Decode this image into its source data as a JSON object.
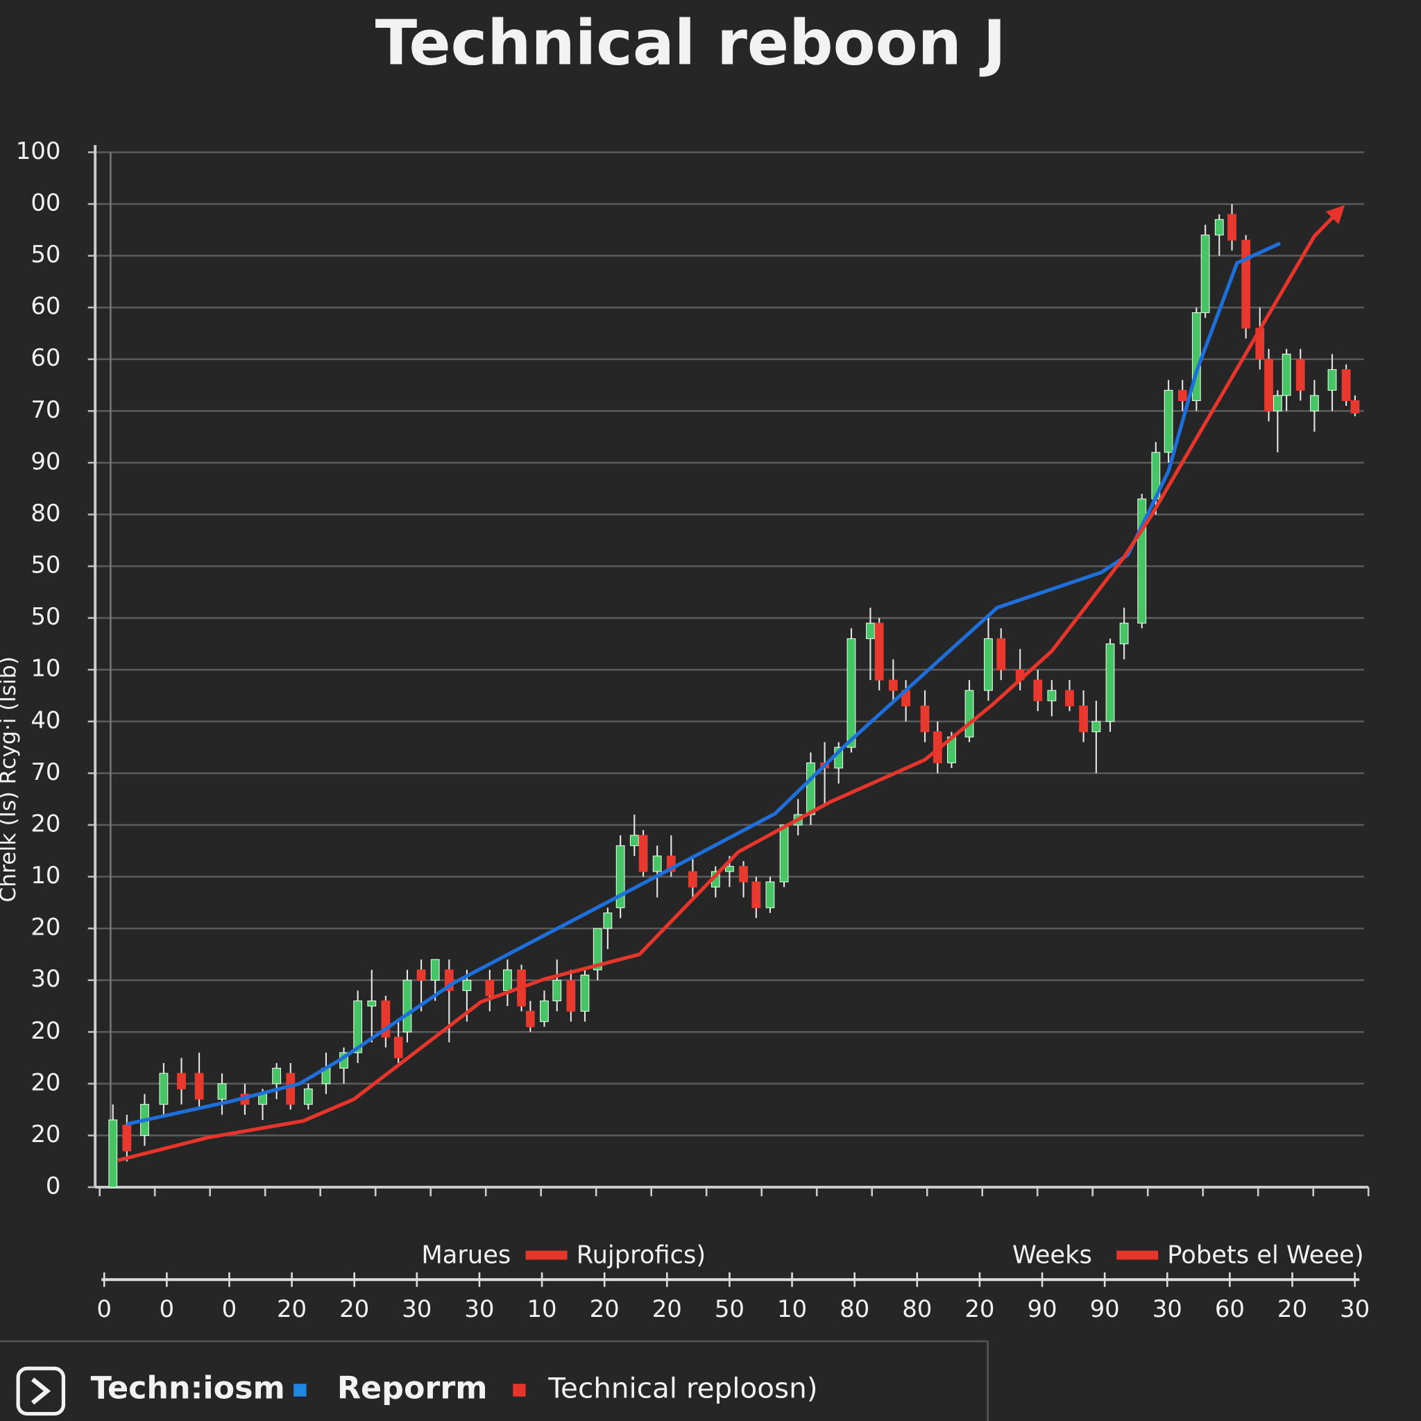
{
  "chart_data": {
    "type": "candlestick",
    "title": "Technical reboon J",
    "y_label": "Chrelk (Is) Rcyg·i (Isib)",
    "ylim": [
      0,
      100
    ],
    "yticks": [
      0,
      {
        "value": 5,
        "label": "20"
      },
      {
        "value": 10,
        "label": "20"
      },
      {
        "value": 15,
        "label": "20"
      },
      {
        "value": 20,
        "label": "30"
      },
      {
        "value": 25,
        "label": "20"
      },
      {
        "value": 30,
        "label": "10"
      },
      {
        "value": 35,
        "label": "20"
      },
      {
        "value": 40,
        "label": "70"
      },
      {
        "value": 45,
        "label": "40"
      },
      {
        "value": 50,
        "label": "10"
      },
      {
        "value": 55,
        "label": "50"
      },
      {
        "value": 60,
        "label": "50"
      },
      {
        "value": 65,
        "label": "80"
      },
      {
        "value": 70,
        "label": "90"
      },
      {
        "value": 75,
        "label": "70"
      },
      {
        "value": 80,
        "label": "60"
      },
      {
        "value": 85,
        "label": "60"
      },
      {
        "value": 90,
        "label": "50"
      },
      {
        "value": 95,
        "label": "00"
      },
      100
    ],
    "xlim": [
      0,
      100
    ],
    "grid": true,
    "up_color": "#47c466",
    "down_color": "#e8392f",
    "candles": {
      "x": [
        1.4,
        2.5,
        3.9,
        5.4,
        6.8,
        8.2,
        10,
        11.8,
        13.2,
        14.3,
        15.4,
        16.8,
        18.2,
        19.6,
        20.7,
        21.8,
        22.9,
        23.9,
        24.6,
        25.7,
        26.8,
        27.9,
        29.3,
        31.1,
        32.5,
        33.6,
        34.3,
        35.4,
        36.4,
        37.5,
        38.6,
        39.6,
        40.4,
        41.4,
        42.5,
        43.2,
        44.3,
        45.4,
        47.1,
        48.9,
        50,
        51.1,
        52.1,
        53.2,
        54.3,
        55.4,
        56.4,
        57.5,
        58.6,
        59.6,
        61.1,
        61.8,
        62.9,
        63.9,
        65.4,
        66.4,
        67.5,
        68.9,
        70.4,
        71.4,
        72.9,
        74.3,
        75.4,
        76.8,
        77.9,
        78.9,
        80,
        81.1,
        82.5,
        83.6,
        84.6,
        85.7,
        86.8,
        87.5,
        88.6,
        89.6,
        90.7,
        91.8,
        92.5,
        93.2,
        93.9,
        95,
        96.1,
        97.5,
        98.6,
        99.3
      ],
      "open": [
        0,
        6,
        5,
        8,
        11,
        11,
        8.5,
        9,
        8,
        10,
        11,
        8,
        10,
        11.5,
        13,
        17.5,
        18,
        14.5,
        15,
        21,
        20,
        21,
        19,
        20,
        19,
        21,
        17,
        16,
        18,
        20,
        17,
        21,
        25,
        27,
        33,
        34,
        30.5,
        32,
        30.5,
        29,
        30.5,
        31,
        29.5,
        27,
        29.5,
        35,
        36,
        41,
        40.5,
        42.5,
        53,
        54.5,
        49,
        48,
        46.5,
        44,
        41,
        43.5,
        48,
        53,
        50,
        49,
        47,
        48,
        46.5,
        44,
        45,
        52.5,
        54.5,
        66.5,
        71,
        77,
        76,
        84.5,
        92,
        94,
        91.5,
        83,
        80,
        75,
        76.5,
        80,
        75,
        77,
        79,
        76
      ],
      "high": [
        8,
        7,
        9,
        12,
        12.5,
        13,
        11,
        10,
        9.5,
        12,
        12,
        10,
        13,
        13.5,
        19,
        21,
        18.5,
        16,
        21,
        22,
        22,
        22,
        21,
        21,
        22,
        21.5,
        18,
        19,
        22,
        21,
        21,
        25,
        27,
        34,
        36,
        34.5,
        33,
        34,
        32,
        31,
        32,
        31.5,
        30,
        30,
        35,
        37.5,
        42,
        43,
        43,
        54,
        56,
        55,
        51,
        49,
        48,
        45,
        44,
        49,
        55,
        54,
        52,
        50,
        49,
        49,
        48,
        47,
        53,
        56,
        67,
        72,
        78,
        78,
        85,
        93,
        94,
        95,
        92,
        85,
        81,
        77,
        81,
        81,
        78,
        80.5,
        79.5,
        76.5
      ],
      "low": [
        0,
        2.5,
        4,
        7,
        8,
        7.5,
        7,
        7,
        6.5,
        8.5,
        7.5,
        7.5,
        9,
        10,
        12,
        14,
        13.5,
        12,
        14,
        17,
        18,
        14,
        16,
        17,
        17.5,
        17,
        15,
        15.5,
        17,
        16,
        16,
        20,
        23,
        26,
        32,
        30,
        28,
        30,
        28,
        28,
        29,
        28,
        26,
        26.5,
        29,
        34,
        35,
        37,
        39,
        42,
        49,
        48,
        47,
        45,
        43,
        40,
        40.5,
        43,
        47,
        49,
        48,
        46,
        45.5,
        46,
        43,
        40,
        44,
        51,
        54,
        65,
        70,
        75,
        75,
        84,
        90,
        90.5,
        82,
        79,
        74,
        71,
        75,
        76,
        73,
        75,
        75.5,
        74.5
      ],
      "close": [
        6.5,
        3.5,
        8,
        11,
        9.5,
        8.5,
        10,
        8,
        9,
        11.5,
        8,
        9.5,
        11.5,
        13,
        18,
        18,
        14.5,
        12.5,
        20,
        20,
        22,
        19,
        20,
        18.5,
        21,
        17.5,
        15.5,
        18,
        20,
        17,
        20.5,
        25,
        26.5,
        33,
        34,
        30.5,
        32,
        30.5,
        29,
        30.5,
        31,
        29.5,
        27,
        29.5,
        35,
        36,
        41,
        40.5,
        42.5,
        53,
        54.5,
        49,
        48,
        46.5,
        44,
        41,
        43.5,
        48,
        53,
        50,
        49,
        47,
        48,
        46.5,
        44,
        45,
        52.5,
        54.5,
        66.5,
        71,
        77,
        76,
        84.5,
        92,
        93.5,
        91.5,
        83,
        80,
        75,
        76.5,
        80.5,
        77,
        76.5,
        79,
        76,
        74.8
      ]
    },
    "lines": [
      {
        "color": "#1e6fd9",
        "x": [
          2.5,
          10.7,
          16.1,
          19.3,
          28.2,
          41.1,
          53.6,
          59.3,
          71.1,
          79.3,
          81.4,
          84.6,
          86.8,
          90,
          93.4
        ],
        "values": [
          6.1,
          8.3,
          10,
          12.3,
          19.7,
          28,
          36.1,
          42.9,
          56,
          59.4,
          61.1,
          69.2,
          78.8,
          89.3,
          91.2
        ]
      },
      {
        "color": "#e8352b",
        "arrow": true,
        "x": [
          1.8,
          8.9,
          16.4,
          20.4,
          30.4,
          35.4,
          42.9,
          50.7,
          57.9,
          65.4,
          70.7,
          75.4,
          81.1,
          83.2,
          96.1,
          98.1
        ],
        "values": [
          2.6,
          4.8,
          6.4,
          8.5,
          17.9,
          20.1,
          22.5,
          32.4,
          37.2,
          41.3,
          46.6,
          51.8,
          60.9,
          64.8,
          91.9,
          94.4
        ]
      }
    ],
    "legend": [
      {
        "text": "Marues"
      },
      {
        "text": "Rujprofics)",
        "color": "#e8352b"
      },
      {
        "text": "Weeks"
      },
      {
        "text": "Pobets el Weee)",
        "color": "#e8352b"
      }
    ],
    "bottom_axis": {
      "labels": [
        "0",
        "0",
        "0",
        "20",
        "20",
        "30",
        "30",
        "10",
        "20",
        "20",
        "50",
        "10",
        "80",
        "80",
        "20",
        "90",
        "90",
        "30",
        "60",
        "20",
        "30"
      ]
    },
    "footer": {
      "brand": "Techn:iosm",
      "items": [
        {
          "text": "Reporrm",
          "color": "#1e88e5"
        },
        {
          "text": "Technical reploosn)",
          "color": "#e8352b"
        }
      ]
    }
  }
}
